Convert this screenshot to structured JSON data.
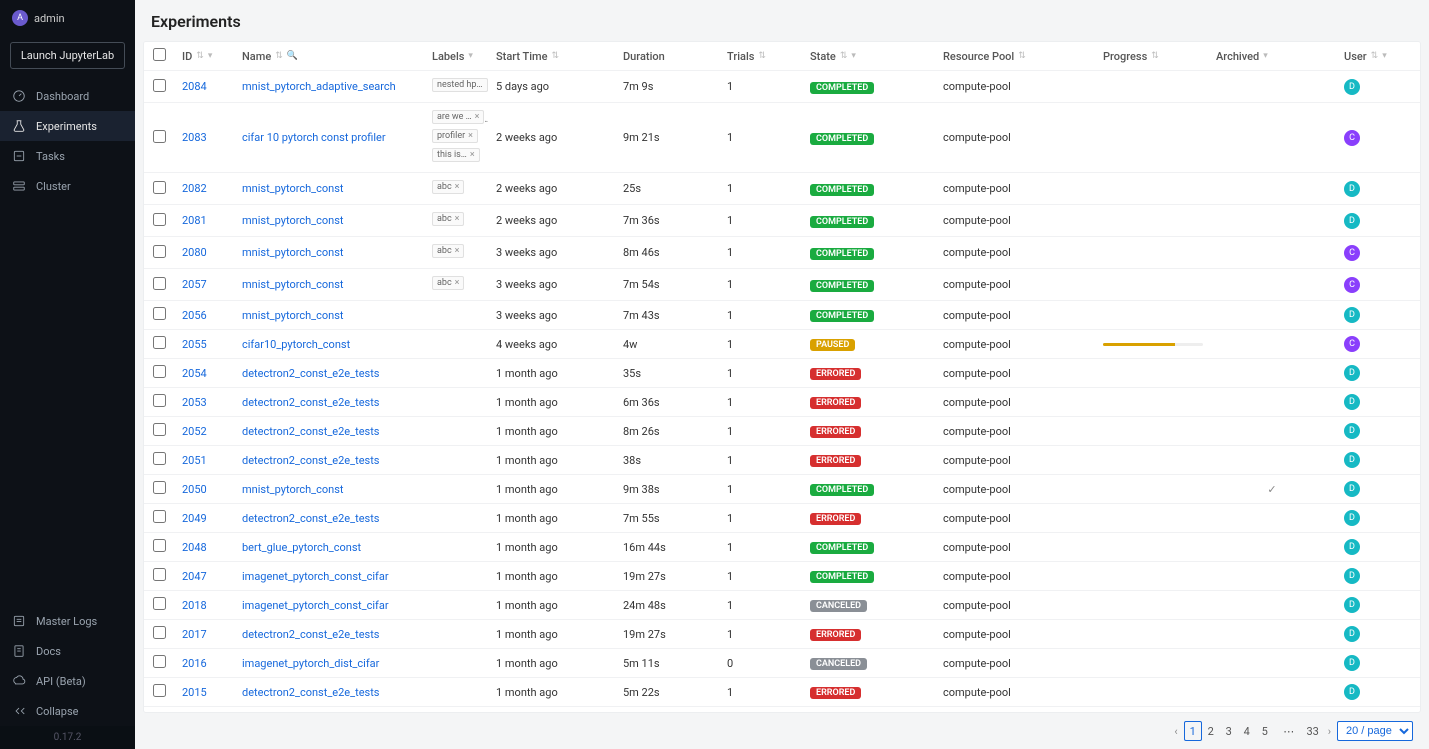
{
  "sidebar": {
    "user": {
      "initial": "A",
      "name": "admin"
    },
    "launch_label": "Launch JupyterLab",
    "nav": [
      {
        "label": "Dashboard",
        "active": false
      },
      {
        "label": "Experiments",
        "active": true
      },
      {
        "label": "Tasks",
        "active": false
      },
      {
        "label": "Cluster",
        "active": false
      }
    ],
    "bottom": [
      {
        "label": "Master Logs"
      },
      {
        "label": "Docs"
      },
      {
        "label": "API (Beta)"
      },
      {
        "label": "Collapse"
      }
    ],
    "version": "0.17.2"
  },
  "page": {
    "title": "Experiments"
  },
  "columns": {
    "id": "ID",
    "name": "Name",
    "labels": "Labels",
    "start": "Start Time",
    "duration": "Duration",
    "trials": "Trials",
    "state": "State",
    "pool": "Resource Pool",
    "progress": "Progress",
    "archived": "Archived",
    "user": "User"
  },
  "state_styles": {
    "COMPLETED": "completed",
    "PAUSED": "paused",
    "ERRORED": "errored",
    "CANCELED": "canceled"
  },
  "rows": [
    {
      "id": "2084",
      "name": "mnist_pytorch_adaptive_search",
      "labels": [
        "nested hp"
      ],
      "start": "5 days ago",
      "duration": "7m 9s",
      "trials": "1",
      "state": "COMPLETED",
      "pool": "compute-pool",
      "progress": null,
      "archived": false,
      "user": "D"
    },
    {
      "id": "2083",
      "name": "cifar 10 pytorch const profiler",
      "labels": [
        "are we …",
        "profiler",
        "this is…"
      ],
      "start": "2 weeks ago",
      "duration": "9m 21s",
      "trials": "1",
      "state": "COMPLETED",
      "pool": "compute-pool",
      "progress": null,
      "archived": false,
      "user": "C"
    },
    {
      "id": "2082",
      "name": "mnist_pytorch_const",
      "labels": [
        "abc"
      ],
      "start": "2 weeks ago",
      "duration": "25s",
      "trials": "1",
      "state": "COMPLETED",
      "pool": "compute-pool",
      "progress": null,
      "archived": false,
      "user": "D"
    },
    {
      "id": "2081",
      "name": "mnist_pytorch_const",
      "labels": [
        "abc"
      ],
      "start": "2 weeks ago",
      "duration": "7m 36s",
      "trials": "1",
      "state": "COMPLETED",
      "pool": "compute-pool",
      "progress": null,
      "archived": false,
      "user": "D"
    },
    {
      "id": "2080",
      "name": "mnist_pytorch_const",
      "labels": [
        "abc"
      ],
      "start": "3 weeks ago",
      "duration": "8m 46s",
      "trials": "1",
      "state": "COMPLETED",
      "pool": "compute-pool",
      "progress": null,
      "archived": false,
      "user": "C"
    },
    {
      "id": "2057",
      "name": "mnist_pytorch_const",
      "labels": [
        "abc"
      ],
      "start": "3 weeks ago",
      "duration": "7m 54s",
      "trials": "1",
      "state": "COMPLETED",
      "pool": "compute-pool",
      "progress": null,
      "archived": false,
      "user": "C"
    },
    {
      "id": "2056",
      "name": "mnist_pytorch_const",
      "labels": [],
      "start": "3 weeks ago",
      "duration": "7m 43s",
      "trials": "1",
      "state": "COMPLETED",
      "pool": "compute-pool",
      "progress": null,
      "archived": false,
      "user": "D"
    },
    {
      "id": "2055",
      "name": "cifar10_pytorch_const",
      "labels": [],
      "start": "4 weeks ago",
      "duration": "4w",
      "trials": "1",
      "state": "PAUSED",
      "pool": "compute-pool",
      "progress": 0.72,
      "archived": false,
      "user": "C"
    },
    {
      "id": "2054",
      "name": "detectron2_const_e2e_tests",
      "labels": [],
      "start": "1 month ago",
      "duration": "35s",
      "trials": "1",
      "state": "ERRORED",
      "pool": "compute-pool",
      "progress": null,
      "archived": false,
      "user": "D"
    },
    {
      "id": "2053",
      "name": "detectron2_const_e2e_tests",
      "labels": [],
      "start": "1 month ago",
      "duration": "6m 36s",
      "trials": "1",
      "state": "ERRORED",
      "pool": "compute-pool",
      "progress": null,
      "archived": false,
      "user": "D"
    },
    {
      "id": "2052",
      "name": "detectron2_const_e2e_tests",
      "labels": [],
      "start": "1 month ago",
      "duration": "8m 26s",
      "trials": "1",
      "state": "ERRORED",
      "pool": "compute-pool",
      "progress": null,
      "archived": false,
      "user": "D"
    },
    {
      "id": "2051",
      "name": "detectron2_const_e2e_tests",
      "labels": [],
      "start": "1 month ago",
      "duration": "38s",
      "trials": "1",
      "state": "ERRORED",
      "pool": "compute-pool",
      "progress": null,
      "archived": false,
      "user": "D"
    },
    {
      "id": "2050",
      "name": "mnist_pytorch_const",
      "labels": [],
      "start": "1 month ago",
      "duration": "9m 38s",
      "trials": "1",
      "state": "COMPLETED",
      "pool": "compute-pool",
      "progress": null,
      "archived": true,
      "user": "D"
    },
    {
      "id": "2049",
      "name": "detectron2_const_e2e_tests",
      "labels": [],
      "start": "1 month ago",
      "duration": "7m 55s",
      "trials": "1",
      "state": "ERRORED",
      "pool": "compute-pool",
      "progress": null,
      "archived": false,
      "user": "D"
    },
    {
      "id": "2048",
      "name": "bert_glue_pytorch_const",
      "labels": [],
      "start": "1 month ago",
      "duration": "16m 44s",
      "trials": "1",
      "state": "COMPLETED",
      "pool": "compute-pool",
      "progress": null,
      "archived": false,
      "user": "D"
    },
    {
      "id": "2047",
      "name": "imagenet_pytorch_const_cifar",
      "labels": [],
      "start": "1 month ago",
      "duration": "19m 27s",
      "trials": "1",
      "state": "COMPLETED",
      "pool": "compute-pool",
      "progress": null,
      "archived": false,
      "user": "D"
    },
    {
      "id": "2018",
      "name": "imagenet_pytorch_const_cifar",
      "labels": [],
      "start": "1 month ago",
      "duration": "24m 48s",
      "trials": "1",
      "state": "CANCELED",
      "pool": "compute-pool",
      "progress": null,
      "archived": false,
      "user": "D"
    },
    {
      "id": "2017",
      "name": "detectron2_const_e2e_tests",
      "labels": [],
      "start": "1 month ago",
      "duration": "19m 27s",
      "trials": "1",
      "state": "ERRORED",
      "pool": "compute-pool",
      "progress": null,
      "archived": false,
      "user": "D"
    },
    {
      "id": "2016",
      "name": "imagenet_pytorch_dist_cifar",
      "labels": [],
      "start": "1 month ago",
      "duration": "5m 11s",
      "trials": "0",
      "state": "CANCELED",
      "pool": "compute-pool",
      "progress": null,
      "archived": false,
      "user": "D"
    },
    {
      "id": "2015",
      "name": "detectron2_const_e2e_tests",
      "labels": [],
      "start": "1 month ago",
      "duration": "5m 22s",
      "trials": "1",
      "state": "ERRORED",
      "pool": "compute-pool",
      "progress": null,
      "archived": false,
      "user": "D"
    }
  ],
  "pagination": {
    "pages": [
      "1",
      "2",
      "3",
      "4",
      "5"
    ],
    "ellipsis": "⋯",
    "last": "33",
    "active": "1",
    "size_label": "20 / page"
  }
}
